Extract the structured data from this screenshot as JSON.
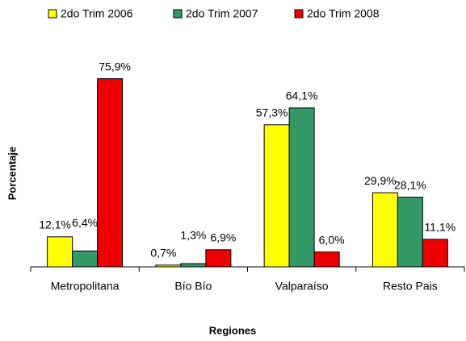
{
  "chart_data": {
    "type": "bar",
    "categories": [
      "Metropolitana",
      "Bío Bío",
      "Valparaíso",
      "Resto Pais"
    ],
    "series": [
      {
        "name": "2do Trim 2006",
        "color": "#ffff00",
        "values": [
          12.1,
          0.7,
          57.3,
          29.9
        ],
        "value_labels": [
          "12,1%",
          "0,7%",
          "57,3%",
          "29,9%"
        ]
      },
      {
        "name": "2do Trim 2007",
        "color": "#339966",
        "values": [
          6.4,
          1.3,
          64.1,
          28.1
        ],
        "value_labels": [
          "6,4%",
          "1,3%",
          "64,1%",
          "28,1%"
        ]
      },
      {
        "name": "2do Trim 2008",
        "color": "#ee0000",
        "values": [
          75.9,
          6.9,
          6.0,
          11.1
        ],
        "value_labels": [
          "75,9%",
          "6,9%",
          "6,0%",
          "11,1%"
        ]
      }
    ],
    "ylim": [
      0,
      80
    ],
    "xlabel": "Regiones",
    "ylabel": "Porcentaje",
    "legend": "top"
  }
}
